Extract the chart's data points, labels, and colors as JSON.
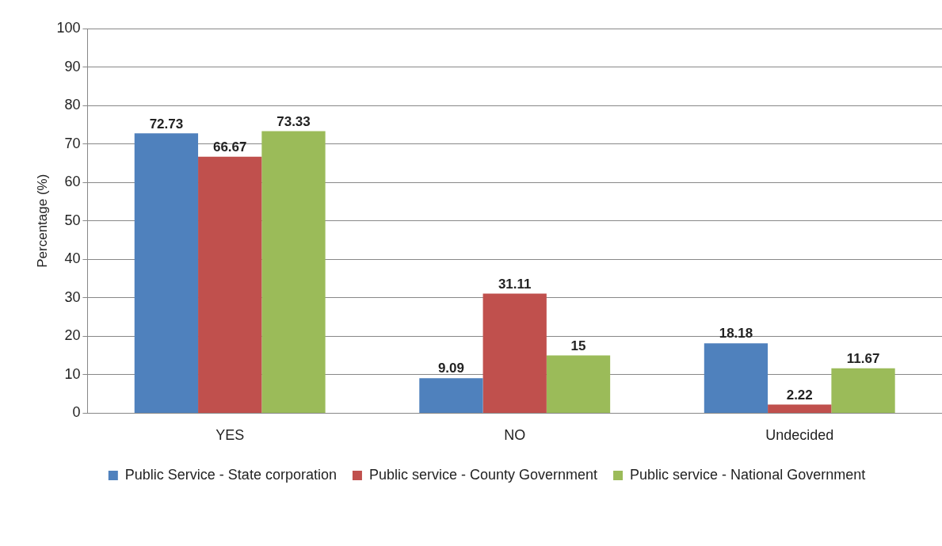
{
  "chart_data": {
    "type": "bar",
    "ylabel": "Percentage (%)",
    "categories": [
      "YES",
      "NO",
      "Undecided"
    ],
    "series": [
      {
        "name": "Public Service - State corporation",
        "color": "#4f81bd",
        "values": [
          72.73,
          9.09,
          18.18
        ]
      },
      {
        "name": "Public service - County Government",
        "color": "#c0504d",
        "values": [
          66.67,
          31.11,
          2.22
        ]
      },
      {
        "name": "Public service - National Government",
        "color": "#9bbb59",
        "values": [
          73.33,
          15,
          11.67
        ]
      }
    ],
    "ylim": [
      0,
      100
    ],
    "yticks": [
      0,
      10,
      20,
      30,
      40,
      50,
      60,
      70,
      80,
      90,
      100
    ],
    "grid": "y",
    "legend": "bottom",
    "data_labels": true
  }
}
